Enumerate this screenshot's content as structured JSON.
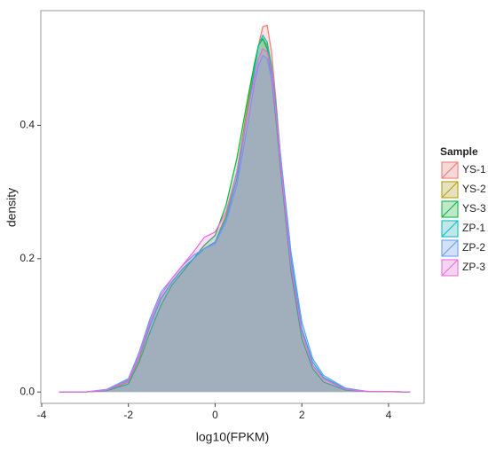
{
  "chart_data": {
    "type": "density",
    "x_label": "log10(FPKM)",
    "y_label": "density",
    "x": [
      -3.6,
      -3,
      -2.5,
      -2,
      -1.75,
      -1.5,
      -1.25,
      -1,
      -0.75,
      -0.5,
      -0.25,
      0,
      0.25,
      0.5,
      0.75,
      0.9,
      1.0,
      1.1,
      1.2,
      1.3,
      1.4,
      1.5,
      1.75,
      2,
      2.25,
      2.5,
      3,
      3.5,
      4.5
    ],
    "series": [
      {
        "name": "YS-1",
        "color": "#F8766D",
        "values": [
          0,
          0,
          0.002,
          0.015,
          0.05,
          0.1,
          0.14,
          0.165,
          0.185,
          0.2,
          0.215,
          0.225,
          0.26,
          0.32,
          0.42,
          0.48,
          0.52,
          0.548,
          0.55,
          0.51,
          0.44,
          0.36,
          0.19,
          0.09,
          0.04,
          0.02,
          0.004,
          0.001,
          0
        ]
      },
      {
        "name": "YS-2",
        "color": "#B79F00",
        "values": [
          0,
          0,
          0.002,
          0.015,
          0.05,
          0.1,
          0.14,
          0.165,
          0.185,
          0.2,
          0.215,
          0.225,
          0.265,
          0.33,
          0.43,
          0.49,
          0.52,
          0.53,
          0.52,
          0.48,
          0.42,
          0.35,
          0.19,
          0.09,
          0.04,
          0.02,
          0.004,
          0.001,
          0
        ]
      },
      {
        "name": "YS-3",
        "color": "#00BA38",
        "values": [
          0,
          0,
          0.002,
          0.012,
          0.045,
          0.09,
          0.13,
          0.16,
          0.18,
          0.2,
          0.22,
          0.235,
          0.28,
          0.35,
          0.44,
          0.49,
          0.52,
          0.53,
          0.515,
          0.47,
          0.41,
          0.34,
          0.18,
          0.08,
          0.035,
          0.015,
          0.003,
          0.001,
          0
        ]
      },
      {
        "name": "ZP-1",
        "color": "#00BFC4",
        "values": [
          0,
          0,
          0.003,
          0.018,
          0.055,
          0.1,
          0.14,
          0.165,
          0.185,
          0.2,
          0.215,
          0.225,
          0.26,
          0.32,
          0.42,
          0.48,
          0.52,
          0.535,
          0.525,
          0.49,
          0.43,
          0.36,
          0.2,
          0.095,
          0.045,
          0.022,
          0.005,
          0.001,
          0
        ]
      },
      {
        "name": "ZP-2",
        "color": "#619CFF",
        "values": [
          0,
          0,
          0.004,
          0.02,
          0.06,
          0.11,
          0.15,
          0.17,
          0.19,
          0.205,
          0.215,
          0.222,
          0.255,
          0.31,
          0.4,
          0.46,
          0.49,
          0.505,
          0.5,
          0.47,
          0.42,
          0.36,
          0.21,
          0.105,
          0.05,
          0.025,
          0.006,
          0.001,
          0
        ]
      },
      {
        "name": "ZP-3",
        "color": "#F564E3",
        "values": [
          0,
          0,
          0.003,
          0.017,
          0.055,
          0.105,
          0.145,
          0.17,
          0.19,
          0.21,
          0.232,
          0.24,
          0.27,
          0.33,
          0.42,
          0.47,
          0.5,
          0.515,
          0.51,
          0.48,
          0.42,
          0.35,
          0.19,
          0.09,
          0.04,
          0.02,
          0.004,
          0.001,
          0
        ]
      }
    ],
    "xlim": [
      -4.02,
      4.82
    ],
    "ylim": [
      -0.017,
      0.572
    ],
    "xticks": [
      -4,
      -2,
      0,
      2,
      4
    ],
    "yticks": [
      {
        "value": 0,
        "label": "0.0"
      },
      {
        "value": 0.2,
        "label": "0.2"
      },
      {
        "value": 0.4,
        "label": "0.4"
      }
    ],
    "legend_title": "Sample",
    "legend": "right"
  }
}
